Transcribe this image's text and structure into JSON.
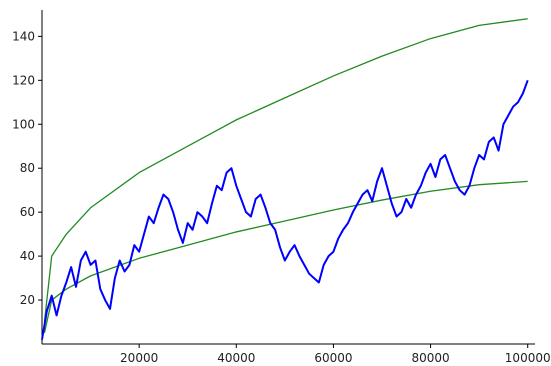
{
  "chart_data": {
    "type": "line",
    "xlim": [
      0,
      101500
    ],
    "ylim": [
      0,
      152
    ],
    "xticks": [
      20000,
      40000,
      60000,
      80000,
      100000
    ],
    "yticks": [
      20,
      40,
      60,
      80,
      100,
      120,
      140
    ],
    "grid": false,
    "series": [
      {
        "color": "#228b22",
        "x": [
          500,
          2000,
          5000,
          10000,
          20000,
          30000,
          40000,
          50000,
          60000,
          70000,
          80000,
          90000,
          100000
        ],
        "values": [
          10,
          40,
          50,
          62,
          78,
          90,
          102,
          112,
          122,
          131,
          139,
          145,
          148
        ]
      },
      {
        "color": "#228b22",
        "x": [
          500,
          2000,
          5000,
          10000,
          20000,
          30000,
          40000,
          50000,
          60000,
          70000,
          80000,
          90000,
          100000
        ],
        "values": [
          5,
          20,
          25,
          31,
          39,
          45,
          51,
          56,
          61,
          65.5,
          69.5,
          72.5,
          74
        ]
      },
      {
        "color": "#0000ff",
        "x": [
          0,
          1000,
          2000,
          3000,
          4000,
          5000,
          6000,
          7000,
          8000,
          9000,
          10000,
          11000,
          12000,
          13000,
          14000,
          15000,
          16000,
          17000,
          18000,
          19000,
          20000,
          21000,
          22000,
          23000,
          24000,
          25000,
          26000,
          27000,
          28000,
          29000,
          30000,
          31000,
          32000,
          33000,
          34000,
          35000,
          36000,
          37000,
          38000,
          39000,
          40000,
          41000,
          42000,
          43000,
          44000,
          45000,
          46000,
          47000,
          48000,
          49000,
          50000,
          51000,
          52000,
          53000,
          54000,
          55000,
          56000,
          57000,
          58000,
          59000,
          60000,
          61000,
          62000,
          63000,
          64000,
          65000,
          66000,
          67000,
          68000,
          69000,
          70000,
          71000,
          72000,
          73000,
          74000,
          75000,
          76000,
          77000,
          78000,
          79000,
          80000,
          81000,
          82000,
          83000,
          84000,
          85000,
          86000,
          87000,
          88000,
          89000,
          90000,
          91000,
          92000,
          93000,
          94000,
          95000,
          96000,
          97000,
          98000,
          99000,
          100000
        ],
        "values": [
          2,
          15,
          22,
          13,
          22,
          28,
          35,
          26,
          38,
          42,
          36,
          38,
          25,
          20,
          16,
          30,
          38,
          33,
          36,
          45,
          42,
          50,
          58,
          55,
          62,
          68,
          66,
          60,
          52,
          46,
          55,
          52,
          60,
          58,
          55,
          64,
          72,
          70,
          78,
          80,
          72,
          66,
          60,
          58,
          66,
          68,
          62,
          55,
          52,
          44,
          38,
          42,
          45,
          40,
          36,
          32,
          30,
          28,
          36,
          40,
          42,
          48,
          52,
          55,
          60,
          64,
          68,
          70,
          65,
          74,
          80,
          72,
          64,
          58,
          60,
          66,
          62,
          68,
          72,
          78,
          82,
          76,
          84,
          86,
          80,
          74,
          70,
          68,
          72,
          80,
          86,
          84,
          92,
          94,
          88,
          100,
          104,
          108,
          110,
          114,
          120
        ]
      }
    ]
  }
}
